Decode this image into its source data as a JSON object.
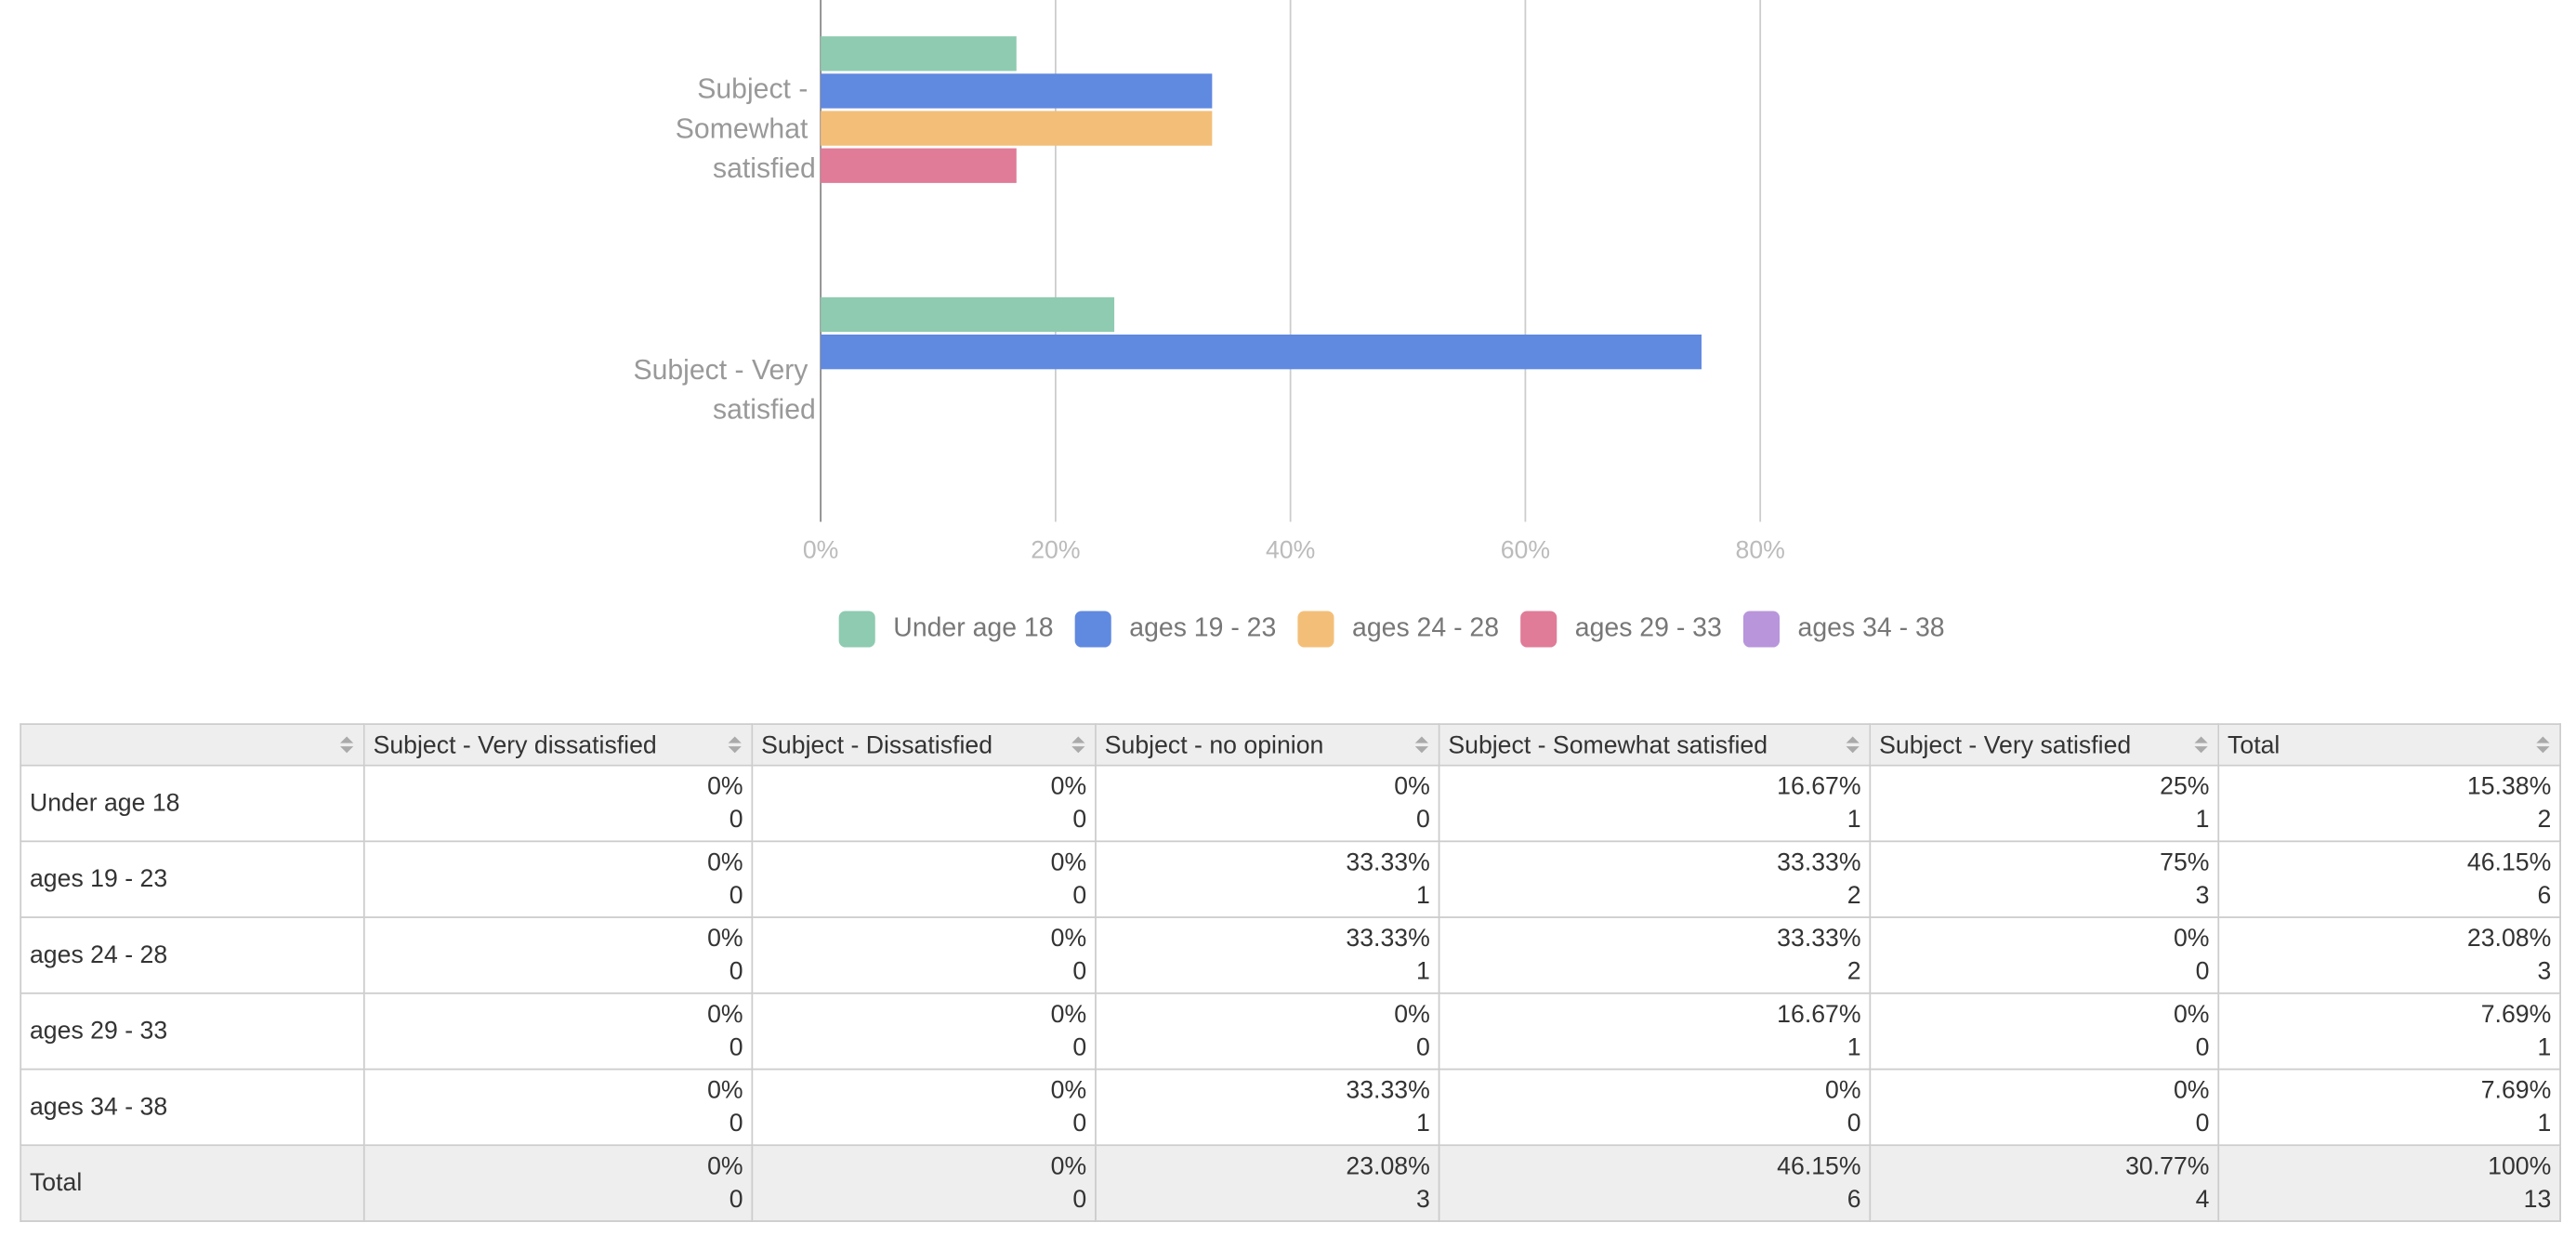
{
  "chart_data": {
    "type": "bar",
    "orientation": "horizontal",
    "categories": [
      "Subject - Somewhat satisfied",
      "Subject - Very satisfied"
    ],
    "series": [
      {
        "name": "Under age 18",
        "color": "#8ecbb1",
        "values": [
          16.67,
          25
        ]
      },
      {
        "name": "ages 19 - 23",
        "color": "#6089e0",
        "values": [
          33.33,
          75
        ]
      },
      {
        "name": "ages 24 - 28",
        "color": "#f3bf78",
        "values": [
          33.33,
          0
        ]
      },
      {
        "name": "ages 29 - 33",
        "color": "#e07b98",
        "values": [
          16.67,
          0
        ]
      },
      {
        "name": "ages 34 - 38",
        "color": "#b995dc",
        "values": [
          0,
          0
        ]
      }
    ],
    "xlim": [
      0,
      80
    ],
    "xticks": [
      {
        "value": 0,
        "label": "0%"
      },
      {
        "value": 20,
        "label": "20%"
      },
      {
        "value": 40,
        "label": "40%"
      },
      {
        "value": 60,
        "label": "60%"
      },
      {
        "value": 80,
        "label": "80%"
      }
    ],
    "grid": true,
    "legend": "bottom"
  },
  "table": {
    "columns": [
      "Subject - Very dissatisfied",
      "Subject - Dissatisfied",
      "Subject - no opinion",
      "Subject - Somewhat satisfied",
      "Subject - Very satisfied",
      "Total"
    ],
    "rows": [
      {
        "label": "Under age 18",
        "cells": [
          [
            "0%",
            0
          ],
          [
            "0%",
            0
          ],
          [
            "0%",
            0
          ],
          [
            "16.67%",
            1
          ],
          [
            "25%",
            1
          ],
          [
            "15.38%",
            2
          ]
        ]
      },
      {
        "label": "ages 19 - 23",
        "cells": [
          [
            "0%",
            0
          ],
          [
            "0%",
            0
          ],
          [
            "33.33%",
            1
          ],
          [
            "33.33%",
            2
          ],
          [
            "75%",
            3
          ],
          [
            "46.15%",
            6
          ]
        ]
      },
      {
        "label": "ages 24 - 28",
        "cells": [
          [
            "0%",
            0
          ],
          [
            "0%",
            0
          ],
          [
            "33.33%",
            1
          ],
          [
            "33.33%",
            2
          ],
          [
            "0%",
            0
          ],
          [
            "23.08%",
            3
          ]
        ]
      },
      {
        "label": "ages 29 - 33",
        "cells": [
          [
            "0%",
            0
          ],
          [
            "0%",
            0
          ],
          [
            "0%",
            0
          ],
          [
            "16.67%",
            1
          ],
          [
            "0%",
            0
          ],
          [
            "7.69%",
            1
          ]
        ]
      },
      {
        "label": "ages 34 - 38",
        "cells": [
          [
            "0%",
            0
          ],
          [
            "0%",
            0
          ],
          [
            "33.33%",
            1
          ],
          [
            "0%",
            0
          ],
          [
            "0%",
            0
          ],
          [
            "7.69%",
            1
          ]
        ]
      },
      {
        "label": "Total",
        "cells": [
          [
            "0%",
            0
          ],
          [
            "0%",
            0
          ],
          [
            "23.08%",
            3
          ],
          [
            "46.15%",
            6
          ],
          [
            "30.77%",
            4
          ],
          [
            "100%",
            13
          ]
        ]
      }
    ]
  }
}
